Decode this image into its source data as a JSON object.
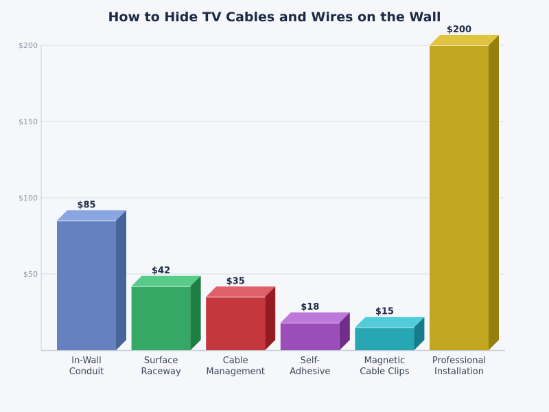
{
  "chart_data": {
    "type": "bar",
    "title": "How to Hide TV Cables and Wires on the Wall",
    "xlabel": "",
    "ylabel": "",
    "categories": [
      "In-Wall Conduit",
      "Surface Raceway",
      "Cable Management",
      "Self-Adhesive",
      "Magnetic Cable Clips",
      "Professional Installation"
    ],
    "category_lines": [
      [
        "In-Wall",
        "Conduit"
      ],
      [
        "Surface",
        "Raceway"
      ],
      [
        "Cable",
        "Management"
      ],
      [
        "Self-",
        "Adhesive"
      ],
      [
        "Magnetic",
        "Cable Clips"
      ],
      [
        "Professional",
        "Installation"
      ]
    ],
    "values": [
      85,
      42,
      35,
      18,
      15,
      200
    ],
    "value_labels": [
      "$85",
      "$42",
      "$35",
      "$18",
      "$15",
      "$200"
    ],
    "ylim": [
      0,
      200
    ],
    "yticks": [
      50,
      100,
      150,
      200
    ],
    "ytick_labels": [
      "$50",
      "$100",
      "$150",
      "$200"
    ],
    "grid": true,
    "legend": null,
    "style": "3d-bar",
    "colors": [
      {
        "front": "#6681bf",
        "top": "#8aa6e2",
        "side": "#44649a"
      },
      {
        "front": "#36a866",
        "top": "#56cc88",
        "side": "#1f7e44"
      },
      {
        "front": "#c4373d",
        "top": "#e0606a",
        "side": "#931c22"
      },
      {
        "front": "#9b4db9",
        "top": "#bd78dc",
        "side": "#702d8c"
      },
      {
        "front": "#27a6b4",
        "top": "#52ccd8",
        "side": "#167d88"
      },
      {
        "front": "#c3a61f",
        "top": "#e0c440",
        "side": "#957f0d"
      }
    ]
  }
}
